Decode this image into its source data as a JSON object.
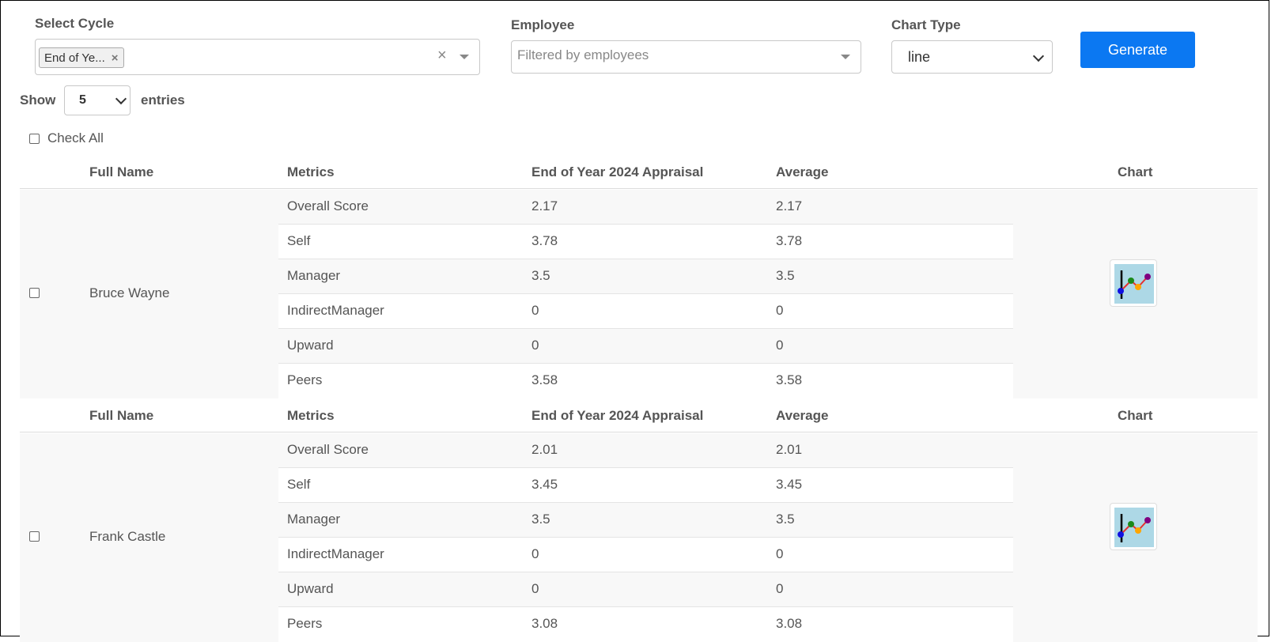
{
  "filters": {
    "cycle_label": "Select Cycle",
    "cycle_tag": "End of Ye...",
    "cycle_tag_remove": "×",
    "cycle_clear": "×",
    "employee_label": "Employee",
    "employee_placeholder": "Filtered by employees",
    "chart_type_label": "Chart Type",
    "chart_type_value": "line",
    "generate_label": "Generate"
  },
  "entries": {
    "show_label": "Show",
    "value": "5",
    "suffix": "entries"
  },
  "check_all_label": "Check All",
  "table": {
    "headers": {
      "full_name": "Full Name",
      "metrics": "Metrics",
      "cycle": "End of Year 2024 Appraisal",
      "average": "Average",
      "chart": "Chart"
    },
    "employees": [
      {
        "name": "Bruce Wayne",
        "rows": [
          {
            "metric": "Overall Score",
            "value": "2.17",
            "average": "2.17"
          },
          {
            "metric": "Self",
            "value": "3.78",
            "average": "3.78"
          },
          {
            "metric": "Manager",
            "value": "3.5",
            "average": "3.5"
          },
          {
            "metric": "IndirectManager",
            "value": "0",
            "average": "0"
          },
          {
            "metric": "Upward",
            "value": "0",
            "average": "0"
          },
          {
            "metric": "Peers",
            "value": "3.58",
            "average": "3.58"
          }
        ]
      },
      {
        "name": "Frank Castle",
        "rows": [
          {
            "metric": "Overall Score",
            "value": "2.01",
            "average": "2.01"
          },
          {
            "metric": "Self",
            "value": "3.45",
            "average": "3.45"
          },
          {
            "metric": "Manager",
            "value": "3.5",
            "average": "3.5"
          },
          {
            "metric": "IndirectManager",
            "value": "0",
            "average": "0"
          },
          {
            "metric": "Upward",
            "value": "0",
            "average": "0"
          },
          {
            "metric": "Peers",
            "value": "3.08",
            "average": "3.08"
          }
        ]
      }
    ]
  },
  "icons": {
    "chart_button": "line-chart-icon"
  },
  "colors": {
    "accent": "#0b78f2",
    "chart_icon_bg": "#add8e6"
  }
}
